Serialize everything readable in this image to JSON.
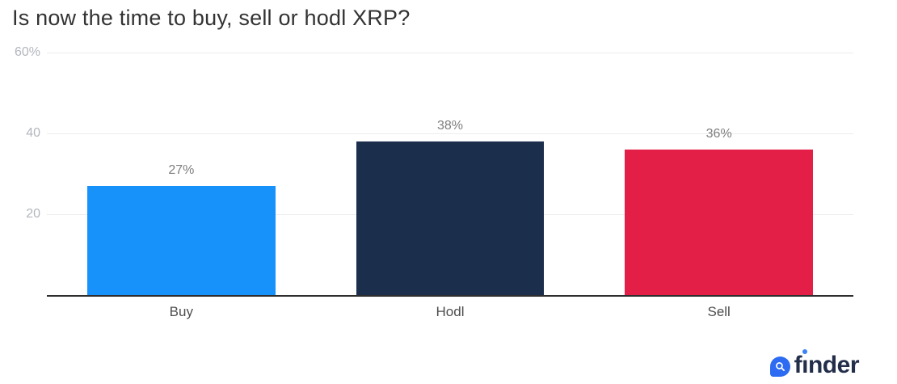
{
  "chart_data": {
    "type": "bar",
    "title": "Is now the time to buy, sell or hodl XRP?",
    "categories": [
      "Buy",
      "Hodl",
      "Sell"
    ],
    "values": [
      27,
      38,
      36
    ],
    "value_labels": [
      "27%",
      "38%",
      "36%"
    ],
    "bar_colors": [
      "#1892fb",
      "#1b2e4c",
      "#e41f47"
    ],
    "xlabel": "",
    "ylabel": "",
    "ylim": [
      0,
      60
    ],
    "y_ticks": [
      {
        "value": 60,
        "label": "60%"
      },
      {
        "value": 40,
        "label": "40"
      },
      {
        "value": 20,
        "label": "20"
      }
    ],
    "grid": true,
    "legend": false
  },
  "colors": {
    "title": "#333333",
    "grid": "#ececec",
    "axis": "#2e2e2e",
    "tick_label": "#b2b6bc",
    "value_label": "#7e7e7e",
    "category_label": "#4d4d4d",
    "logo_blue": "#2c6bf2",
    "logo_navy": "#232e4a",
    "logo_dot": "#3b82f6"
  },
  "branding": {
    "logo_text": "finder",
    "logo_icon": "magnifier-icon"
  }
}
